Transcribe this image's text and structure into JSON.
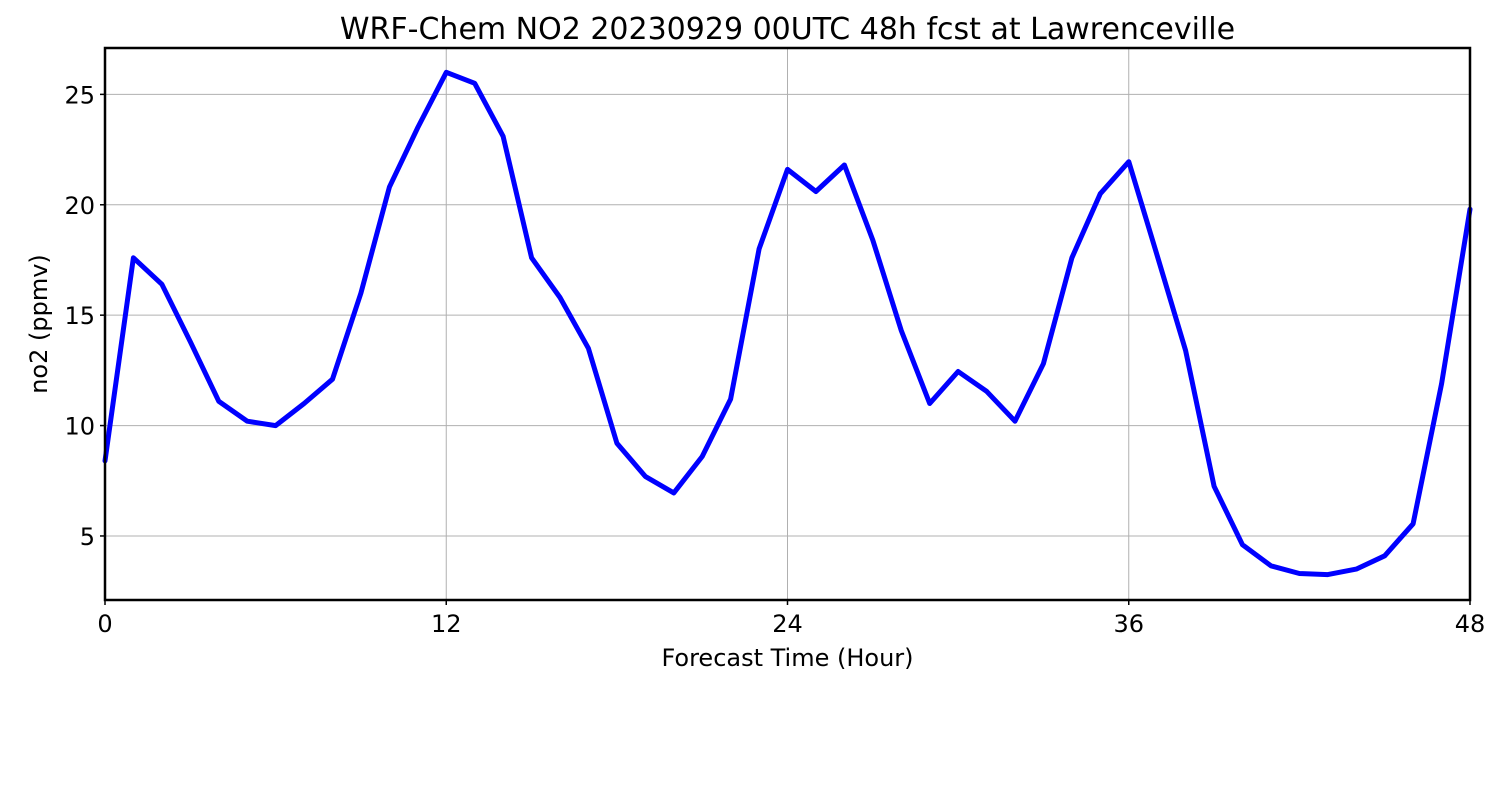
{
  "chart_data": {
    "type": "line",
    "title": "WRF-Chem NO2  20230929 00UTC 48h fcst at Lawrenceville",
    "xlabel": "Forecast Time (Hour)",
    "ylabel": "no2  (ppmv)",
    "xlim": [
      0,
      48
    ],
    "ylim": [
      2.1,
      27.1
    ],
    "xticks": [
      0,
      12,
      24,
      36,
      48
    ],
    "yticks": [
      5,
      10,
      15,
      20,
      25
    ],
    "xtick_labels": [
      "0",
      "12",
      "24",
      "36",
      "48"
    ],
    "ytick_labels": [
      "5",
      "10",
      "15",
      "20",
      "25"
    ],
    "grid": true,
    "x": [
      0,
      1,
      2,
      3,
      4,
      5,
      6,
      7,
      8,
      9,
      10,
      11,
      12,
      13,
      14,
      15,
      16,
      17,
      18,
      19,
      20,
      21,
      22,
      23,
      24,
      25,
      26,
      27,
      28,
      29,
      30,
      31,
      32,
      33,
      34,
      35,
      36,
      37,
      38,
      39,
      40,
      41,
      42,
      43,
      44,
      45,
      46,
      47,
      48
    ],
    "series": [
      {
        "color": "#0000ff",
        "values": [
          8.4,
          17.6,
          16.4,
          13.8,
          11.1,
          10.2,
          10.0,
          11.0,
          12.1,
          16.0,
          20.8,
          23.5,
          26.0,
          25.5,
          23.1,
          17.6,
          15.8,
          13.5,
          9.2,
          7.7,
          6.95,
          8.6,
          11.2,
          18.0,
          21.6,
          20.6,
          21.8,
          18.4,
          14.3,
          11.0,
          12.45,
          11.55,
          10.2,
          12.8,
          17.6,
          20.5,
          21.95,
          17.7,
          13.4,
          7.25,
          4.6,
          3.65,
          3.3,
          3.25,
          3.5,
          4.1,
          5.55,
          11.9,
          19.8
        ]
      }
    ]
  }
}
